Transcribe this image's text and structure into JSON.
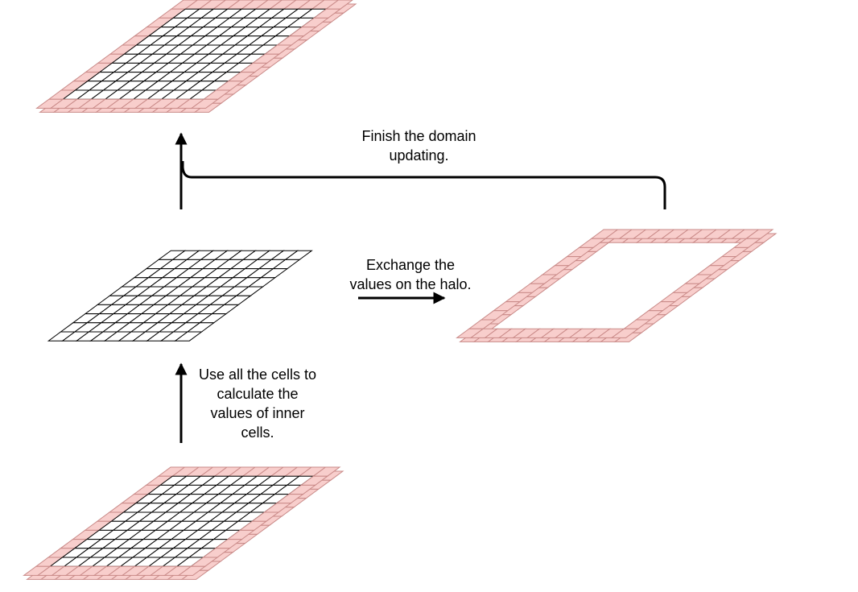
{
  "labels": {
    "finish": [
      "Finish the domain",
      "updating."
    ],
    "exchange": [
      "Exchange the",
      "values on the halo."
    ],
    "use": [
      "Use all the cells to",
      "calculate the",
      "values of inner",
      "cells."
    ]
  },
  "colors": {
    "halo_fill": "#f8cecc",
    "halo_stroke": "#b85450",
    "grid_stroke": "#000000",
    "arrow": "#000000"
  }
}
